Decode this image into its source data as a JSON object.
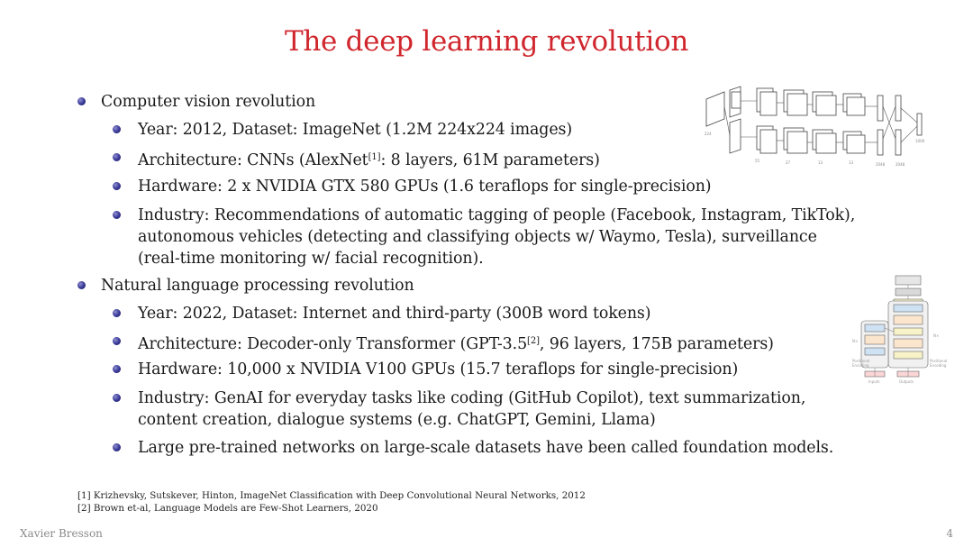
{
  "title": "The deep learning revolution",
  "sections": [
    {
      "heading": "Computer vision revolution",
      "items": [
        {
          "text": "Year: 2012, Dataset: ImageNet (1.2M 224x224 images)"
        },
        {
          "pre": "Architecture: CNNs (AlexNet",
          "sup": "[1]",
          "post": ": 8 layers, 61M parameters)"
        },
        {
          "text": "Hardware: 2 x NVIDIA GTX 580 GPUs (1.6 teraflops for single-precision)"
        },
        {
          "lines": [
            "Industry: Recommendations of automatic tagging of people (Facebook, Instagram, TikTok),",
            "autonomous vehicles (detecting and classifying objects w/ Waymo, Tesla), surveillance",
            "(real-time monitoring w/ facial recognition)."
          ]
        }
      ]
    },
    {
      "heading": "Natural language processing revolution",
      "items": [
        {
          "text": "Year: 2022, Dataset: Internet and third-party (300B word tokens)"
        },
        {
          "pre": "Architecture: Decoder-only Transformer (GPT-3.5",
          "sup": "[2]",
          "post": ", 96 layers, 175B parameters)"
        },
        {
          "text": "Hardware: 10,000 x NVIDIA V100 GPUs (15.7 teraflops for single-precision)"
        },
        {
          "lines": [
            "Industry: GenAI for everyday tasks like coding (GitHub Copilot), text summarization,",
            "content creation, dialogue systems (e.g. ChatGPT, Gemini, Llama)"
          ]
        },
        {
          "text": "Large pre-trained networks on large-scale datasets have been called foundation models."
        }
      ]
    }
  ],
  "references": [
    "[1] Krizhevsky, Sutskever, Hinton, ImageNet Classification with Deep Convolutional Neural Networks, 2012",
    "[2] Brown et-al, Language Models are Few-Shot Learners, 2020"
  ],
  "footer": {
    "author": "Xavier Bresson",
    "page": "4"
  },
  "figures": {
    "cnn_icon": "alexnet-architecture-diagram",
    "transformer_icon": "transformer-architecture-diagram"
  },
  "colors": {
    "title": "#d0262d",
    "bullet": "#3b3b9a"
  }
}
